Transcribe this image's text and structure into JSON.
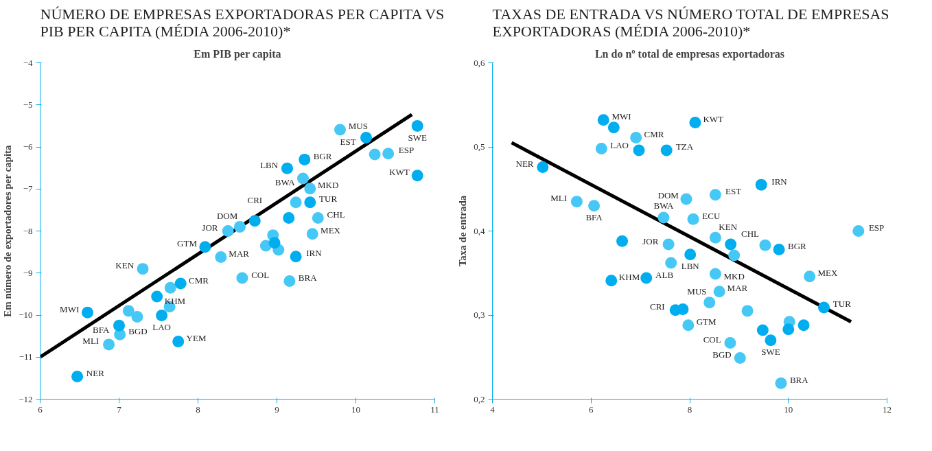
{
  "chart_data": [
    {
      "type": "scatter",
      "title": "NÚMERO DE EMPRESAS EXPORTADORAS PER CAPITA VS PIB PER CAPITA (MÉDIA 2006-2010)*",
      "xlabel": "Em PIB per capita",
      "ylabel": "Em número de exportadores per capita",
      "xlim": [
        6,
        11
      ],
      "xticks": [
        6,
        7,
        8,
        9,
        10,
        11
      ],
      "ylim": [
        -12,
        -4
      ],
      "yticks": [
        -12,
        -11,
        -10,
        -9,
        -8,
        -7,
        -6,
        -5,
        -4
      ],
      "grid": false,
      "marker": "circle",
      "series": [
        {
          "color": "#00adef",
          "x": [
            6.47,
            6.6,
            7.0,
            7.48,
            7.54,
            7.78,
            7.75,
            8.09,
            8.72,
            8.97,
            9.15,
            9.24,
            9.13,
            9.35,
            9.42,
            10.13,
            10.78,
            10.78
          ],
          "values": [
            -11.46,
            -9.94,
            -10.25,
            -9.56,
            -10.01,
            -9.25,
            -10.63,
            -8.38,
            -7.76,
            -8.28,
            -7.69,
            -8.61,
            -6.51,
            -6.3,
            -7.32,
            -5.78,
            -5.5,
            -6.68
          ]
        },
        {
          "color": "#45c8f5",
          "x": [
            6.87,
            7.01,
            7.12,
            7.23,
            7.3,
            7.64,
            7.65,
            8.29,
            8.38,
            8.53,
            8.86,
            8.95,
            9.02,
            8.56,
            9.24,
            9.16,
            9.33,
            9.42,
            9.52,
            9.45,
            9.8,
            10.24,
            10.41
          ],
          "values": [
            -10.7,
            -10.46,
            -9.9,
            -10.04,
            -8.9,
            -9.8,
            -9.35,
            -8.62,
            -8.0,
            -7.9,
            -8.35,
            -8.1,
            -8.45,
            -9.12,
            -7.32,
            -9.19,
            -6.75,
            -6.99,
            -7.69,
            -8.07,
            -5.59,
            -6.18,
            -6.16
          ]
        },
        {
          "type": "line",
          "marker": "none",
          "color": "#000000",
          "x": [
            6,
            10.71
          ],
          "values": [
            -11.0,
            -5.23
          ]
        }
      ],
      "annotations": [
        {
          "text": "NER",
          "x": 6.47,
          "y": -11.46
        },
        {
          "text": "MWI",
          "x": 6.6,
          "y": -9.94
        },
        {
          "text": "MLI",
          "x": 6.87,
          "y": -10.7
        },
        {
          "text": "BGD",
          "x": 7.01,
          "y": -10.46
        },
        {
          "text": "BFA",
          "x": 7.0,
          "y": -10.25
        },
        {
          "text": "KEN",
          "x": 7.3,
          "y": -8.9
        },
        {
          "text": "KHM",
          "x": 7.48,
          "y": -9.56
        },
        {
          "text": "LAO",
          "x": 7.54,
          "y": -10.01
        },
        {
          "text": "CMR",
          "x": 7.78,
          "y": -9.25
        },
        {
          "text": "YEM",
          "x": 7.75,
          "y": -10.63
        },
        {
          "text": "GTM",
          "x": 8.09,
          "y": -8.38
        },
        {
          "text": "MAR",
          "x": 8.29,
          "y": -8.62
        },
        {
          "text": "JOR",
          "x": 8.38,
          "y": -8.0
        },
        {
          "text": "DOM",
          "x": 8.53,
          "y": -7.9
        },
        {
          "text": "COL",
          "x": 8.56,
          "y": -9.12
        },
        {
          "text": "CRI",
          "x": 8.72,
          "y": -7.76
        },
        {
          "text": "BRA",
          "x": 9.16,
          "y": -9.19
        },
        {
          "text": "IRN",
          "x": 9.24,
          "y": -8.61
        },
        {
          "text": "LBN",
          "x": 9.13,
          "y": -6.51
        },
        {
          "text": "BWA",
          "x": 9.33,
          "y": -6.75
        },
        {
          "text": "MKD",
          "x": 9.42,
          "y": -6.99
        },
        {
          "text": "BGR",
          "x": 9.35,
          "y": -6.3
        },
        {
          "text": "TUR",
          "x": 9.42,
          "y": -7.32
        },
        {
          "text": "CHL",
          "x": 9.52,
          "y": -7.69
        },
        {
          "text": "MEX",
          "x": 9.45,
          "y": -8.07
        },
        {
          "text": "MUS",
          "x": 9.8,
          "y": -5.59
        },
        {
          "text": "EST",
          "x": 10.13,
          "y": -5.78
        },
        {
          "text": "ESP",
          "x": 10.41,
          "y": -6.16
        },
        {
          "text": "SWE",
          "x": 10.78,
          "y": -5.5
        },
        {
          "text": "KWT",
          "x": 10.78,
          "y": -6.68
        }
      ]
    },
    {
      "type": "scatter",
      "title": "TAXAS DE ENTRADA VS NÚMERO TOTAL DE EMPRESAS EXPORTADORAS (MÉDIA 2006-2010)*",
      "xlabel": "Ln do nº total de empresas exportadoras",
      "ylabel": "Taxa de entrada",
      "xlim": [
        4,
        12
      ],
      "xticks": [
        4,
        6,
        8,
        10,
        12
      ],
      "ylim": [
        0.2,
        0.6
      ],
      "yticks": [
        {
          "value": 0.2,
          "label": "0,2"
        },
        {
          "value": 0.3,
          "label": "0,3"
        },
        {
          "value": 0.4,
          "label": "0,4"
        },
        {
          "value": 0.5,
          "label": "0,5"
        },
        {
          "value": 0.6,
          "label": "0,6"
        }
      ],
      "grid": false,
      "marker": "circle",
      "series": [
        {
          "color": "#00adef",
          "x": [
            5.02,
            6.25,
            6.46,
            6.97,
            6.63,
            6.41,
            7.12,
            7.53,
            8.11,
            9.45,
            8.83,
            9.81,
            8.01,
            7.71,
            7.86,
            10.72,
            10.0,
            10.31,
            9.48,
            9.64
          ],
          "values": [
            0.476,
            0.532,
            0.523,
            0.496,
            0.388,
            0.341,
            0.344,
            0.496,
            0.529,
            0.455,
            0.384,
            0.378,
            0.372,
            0.306,
            0.307,
            0.309,
            0.283,
            0.288,
            0.282,
            0.27
          ]
        },
        {
          "color": "#45c8f5",
          "x": [
            6.21,
            6.91,
            5.71,
            6.06,
            7.47,
            8.52,
            7.93,
            8.07,
            11.42,
            8.52,
            9.53,
            8.9,
            7.57,
            7.62,
            8.52,
            10.43,
            8.6,
            8.4,
            9.17,
            7.97,
            10.02,
            8.82,
            9.02,
            9.85
          ],
          "values": [
            0.498,
            0.511,
            0.435,
            0.43,
            0.416,
            0.443,
            0.438,
            0.414,
            0.4,
            0.392,
            0.383,
            0.371,
            0.384,
            0.362,
            0.349,
            0.346,
            0.328,
            0.315,
            0.305,
            0.288,
            0.292,
            0.267,
            0.249,
            0.219
          ]
        },
        {
          "type": "line",
          "marker": "none",
          "color": "#000000",
          "x": [
            4.39,
            11.27
          ],
          "values": [
            0.505,
            0.292
          ]
        }
      ],
      "annotations": [
        {
          "text": "NER",
          "x": 5.02,
          "y": 0.476
        },
        {
          "text": "MWI",
          "x": 6.25,
          "y": 0.532
        },
        {
          "text": "LAO",
          "x": 6.21,
          "y": 0.498
        },
        {
          "text": "CMR",
          "x": 6.91,
          "y": 0.511
        },
        {
          "text": "KWT",
          "x": 8.11,
          "y": 0.529
        },
        {
          "text": "TZA",
          "x": 7.53,
          "y": 0.496
        },
        {
          "text": "MLI",
          "x": 5.71,
          "y": 0.435
        },
        {
          "text": "BFA",
          "x": 6.06,
          "y": 0.43
        },
        {
          "text": "DOM",
          "x": 7.93,
          "y": 0.438
        },
        {
          "text": "BWA",
          "x": 7.47,
          "y": 0.416
        },
        {
          "text": "EST",
          "x": 8.52,
          "y": 0.443
        },
        {
          "text": "IRN",
          "x": 9.45,
          "y": 0.455
        },
        {
          "text": "ESP",
          "x": 11.42,
          "y": 0.4
        },
        {
          "text": "ECU",
          "x": 8.07,
          "y": 0.414
        },
        {
          "text": "KEN",
          "x": 8.52,
          "y": 0.392
        },
        {
          "text": "JOR",
          "x": 7.57,
          "y": 0.384
        },
        {
          "text": "BGR",
          "x": 9.81,
          "y": 0.378
        },
        {
          "text": "CHL",
          "x": 8.83,
          "y": 0.384
        },
        {
          "text": "MKD",
          "x": 8.9,
          "y": 0.371
        },
        {
          "text": "LBN",
          "x": 8.01,
          "y": 0.372
        },
        {
          "text": "ALB",
          "x": 7.12,
          "y": 0.344
        },
        {
          "text": "KHM",
          "x": 6.41,
          "y": 0.341
        },
        {
          "text": "MEX",
          "x": 10.43,
          "y": 0.346
        },
        {
          "text": "MUS",
          "x": 8.4,
          "y": 0.315
        },
        {
          "text": "MAR",
          "x": 8.6,
          "y": 0.328
        },
        {
          "text": "TUR",
          "x": 10.72,
          "y": 0.309
        },
        {
          "text": "CRI",
          "x": 7.71,
          "y": 0.306
        },
        {
          "text": "GTM",
          "x": 7.97,
          "y": 0.288
        },
        {
          "text": "COL",
          "x": 8.82,
          "y": 0.267
        },
        {
          "text": "SWE",
          "x": 9.64,
          "y": 0.27
        },
        {
          "text": "BGD",
          "x": 9.02,
          "y": 0.249
        },
        {
          "text": "BRA",
          "x": 9.85,
          "y": 0.219
        }
      ]
    }
  ]
}
